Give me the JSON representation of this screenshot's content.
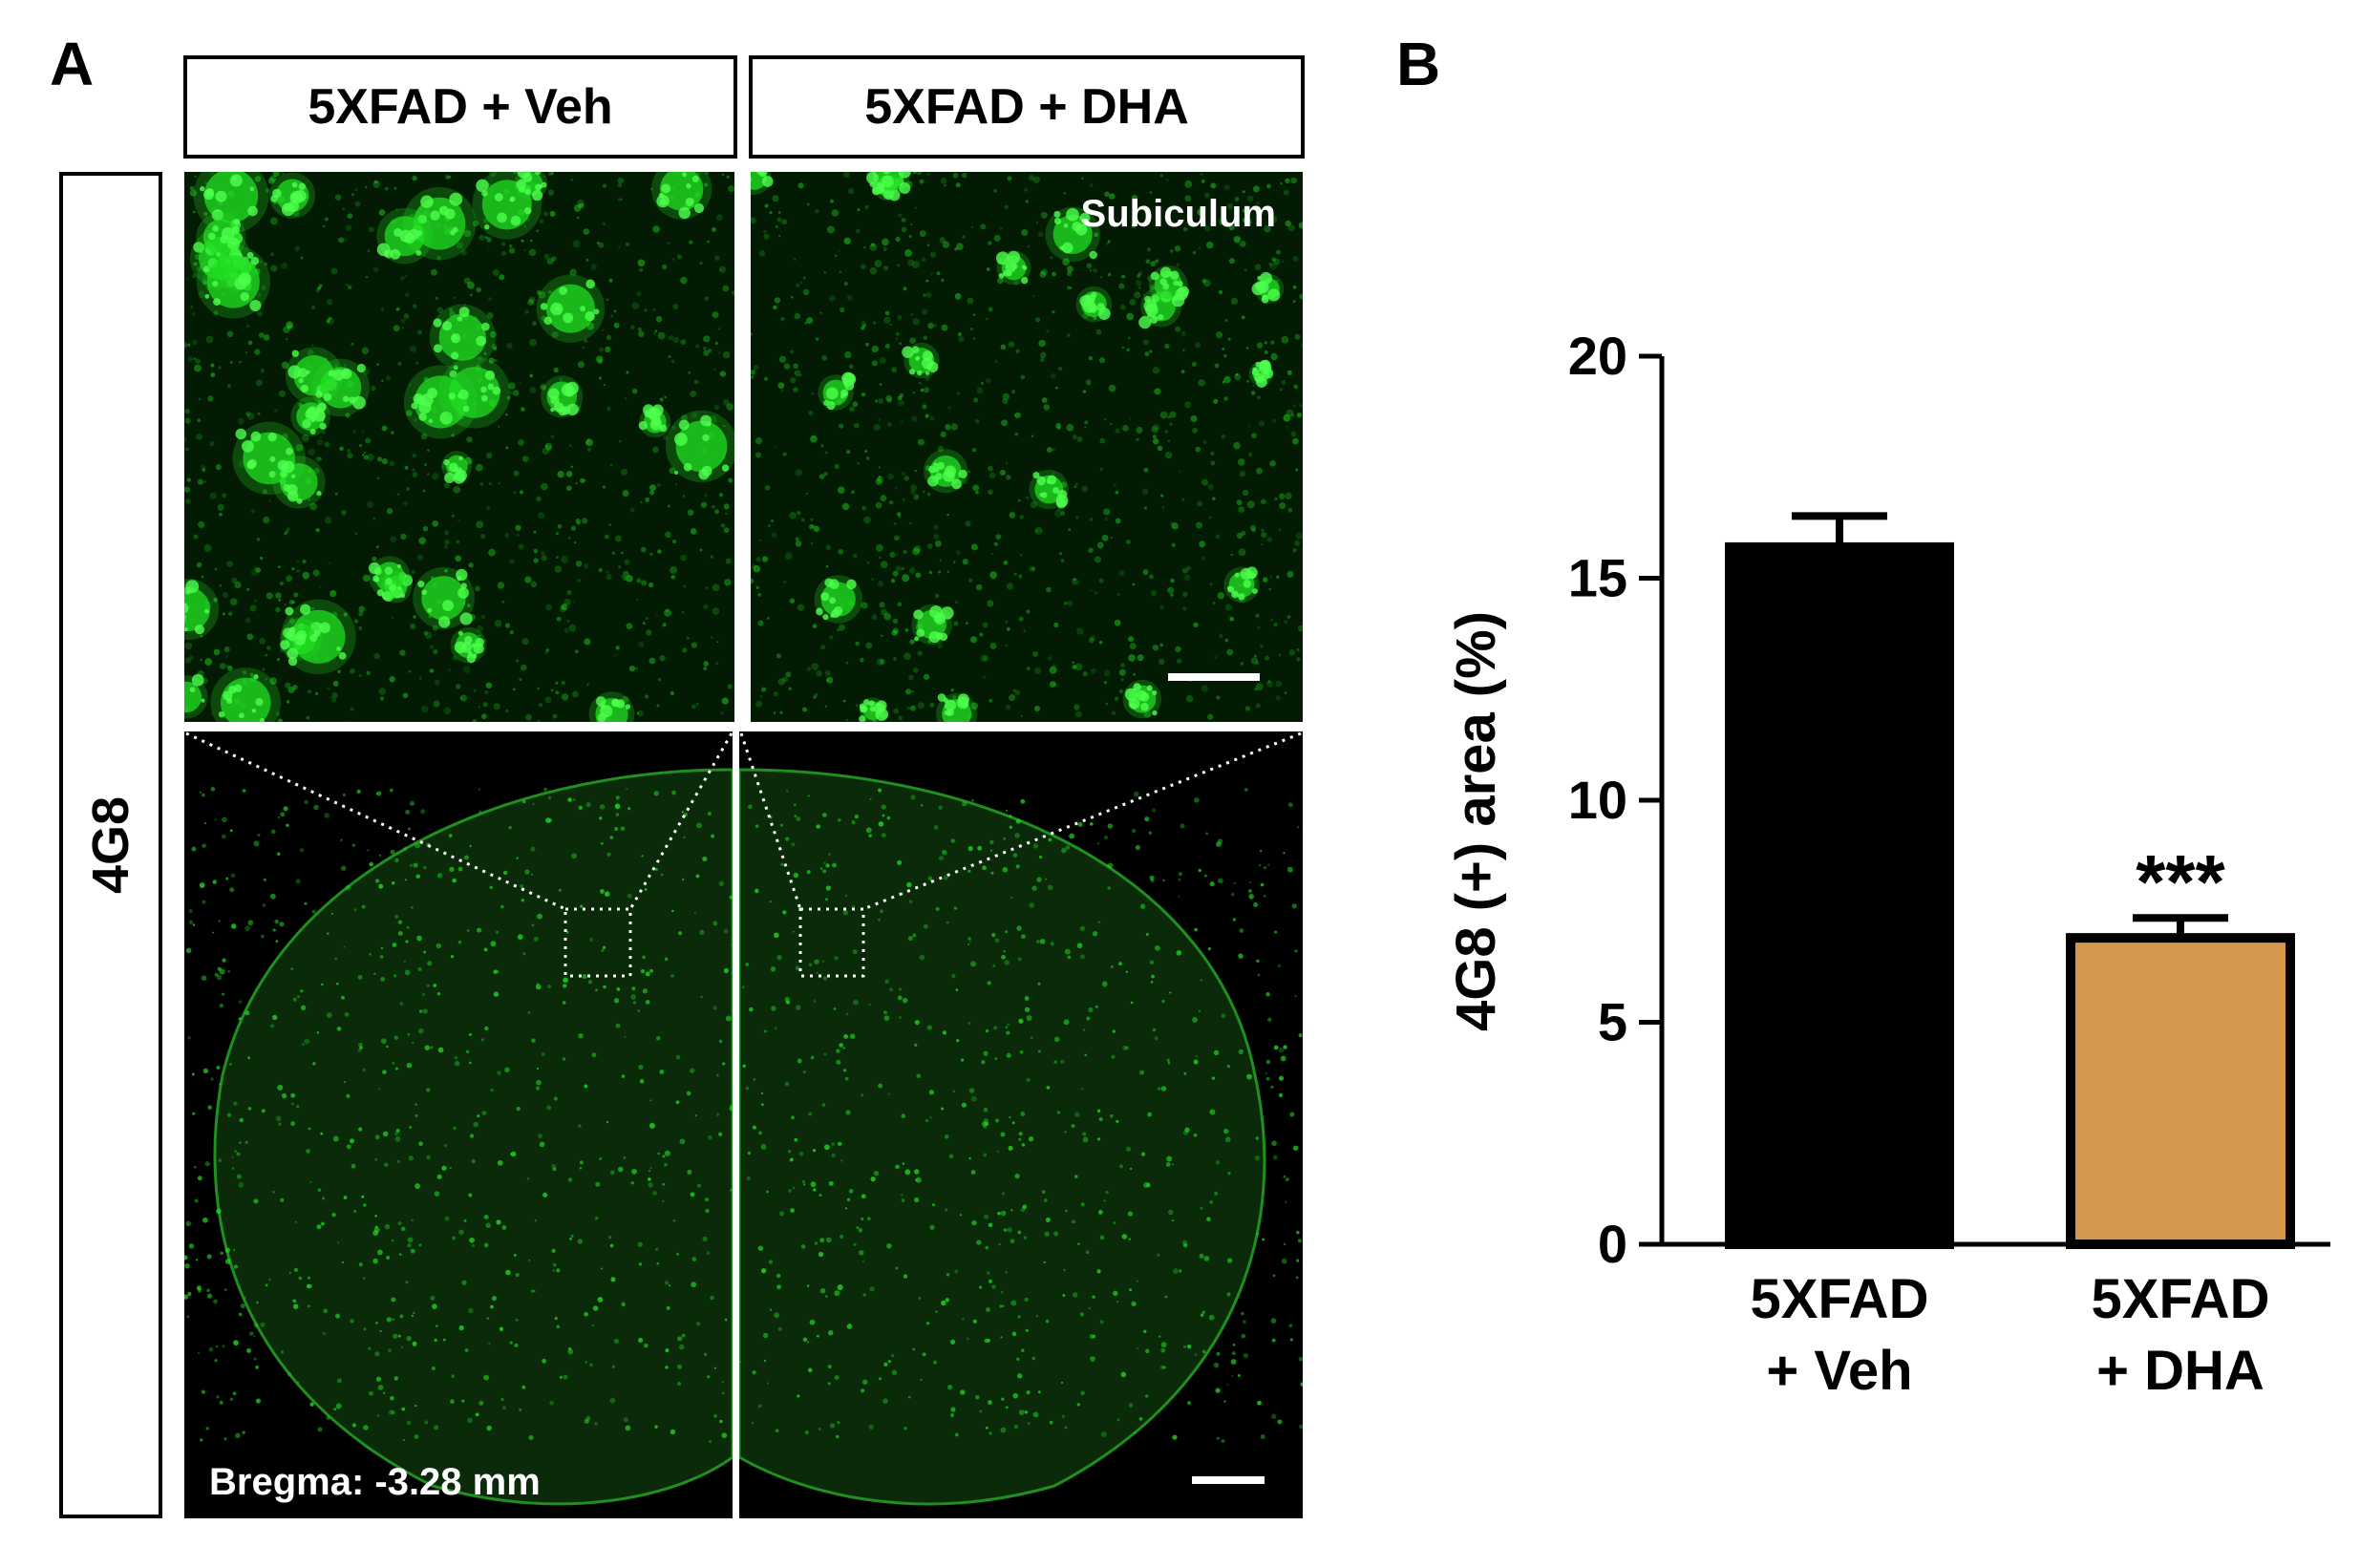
{
  "panel_a": {
    "letter": "A",
    "columns": [
      "5XFAD + Veh",
      "5XFAD + DHA"
    ],
    "row_label": "4G8",
    "region_label": "Subiculum",
    "bregma_label": "Bregma: -3.28 mm",
    "stain_color": "#22dd22"
  },
  "panel_b": {
    "letter": "B",
    "chart_data": {
      "type": "bar",
      "categories": [
        "5XFAD\n+ Veh",
        "5XFAD\n+ DHA"
      ],
      "category_lines": [
        [
          "5XFAD",
          "+ Veh"
        ],
        [
          "5XFAD",
          "+ DHA"
        ]
      ],
      "values": [
        15.7,
        6.9
      ],
      "errors": [
        0.7,
        0.45
      ],
      "colors": [
        "#000000",
        "#d4994f"
      ],
      "significance": [
        "",
        "***"
      ],
      "ylabel": "4G8 (+) area (%)",
      "xlabel": "",
      "ylim": [
        0,
        20
      ],
      "yticks": [
        0,
        5,
        10,
        15,
        20
      ],
      "grid": false,
      "legend": "none"
    }
  }
}
